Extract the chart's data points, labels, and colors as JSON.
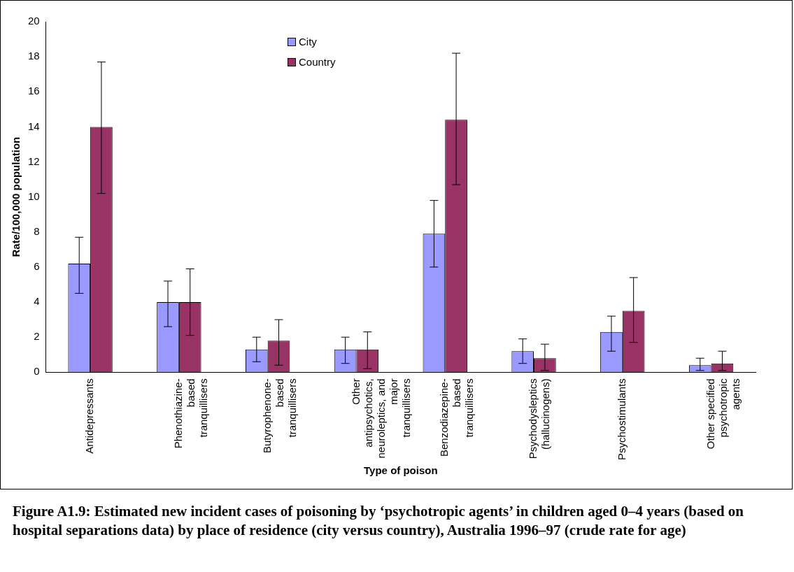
{
  "chart_data": {
    "type": "bar",
    "title": "Figure A1.9:  Estimated new incident cases of poisoning by ‘psychotropic agents’ in children aged 0–4 years (based on hospital separations data) by place of residence (city versus country), Australia 1996–97 (crude rate for age)",
    "xlabel": "Type of poison",
    "ylabel": "Rate/100,000 population",
    "categories": [
      "Antidepressants",
      "Phenothiazine-based tranquillisers",
      "Butyrophenone-based tranquillisers",
      "Other antipsychotics, neuroleptics, and major tranquillisers",
      "Benzodiazepine-based tranquillisers",
      "Psychodysleptics (hallucinogens)",
      "Psychostimulants",
      "Other specified psychotropic agents"
    ],
    "series": [
      {
        "name": "City",
        "color": "#9999ff",
        "values": [
          6.2,
          4.0,
          1.3,
          1.3,
          7.9,
          1.2,
          2.3,
          0.4
        ],
        "errors": [
          [
            4.5,
            7.7
          ],
          [
            2.6,
            5.2
          ],
          [
            0.6,
            2.0
          ],
          [
            0.5,
            2.0
          ],
          [
            6.0,
            9.8
          ],
          [
            0.5,
            1.9
          ],
          [
            1.2,
            3.2
          ],
          [
            0.1,
            0.8
          ]
        ]
      },
      {
        "name": "Country",
        "color": "#993366",
        "values": [
          14.0,
          4.0,
          1.8,
          1.3,
          14.4,
          0.8,
          3.5,
          0.5
        ],
        "errors": [
          [
            10.2,
            17.7
          ],
          [
            2.1,
            5.9
          ],
          [
            0.4,
            3.0
          ],
          [
            0.2,
            2.3
          ],
          [
            10.7,
            18.2
          ],
          [
            0.1,
            1.6
          ],
          [
            1.7,
            5.4
          ],
          [
            0.1,
            1.2
          ]
        ]
      }
    ],
    "ylim": [
      0,
      20
    ],
    "yticks": [
      0,
      2,
      4,
      6,
      8,
      10,
      12,
      14,
      16,
      18,
      20
    ],
    "grid": false,
    "legend": "top"
  }
}
